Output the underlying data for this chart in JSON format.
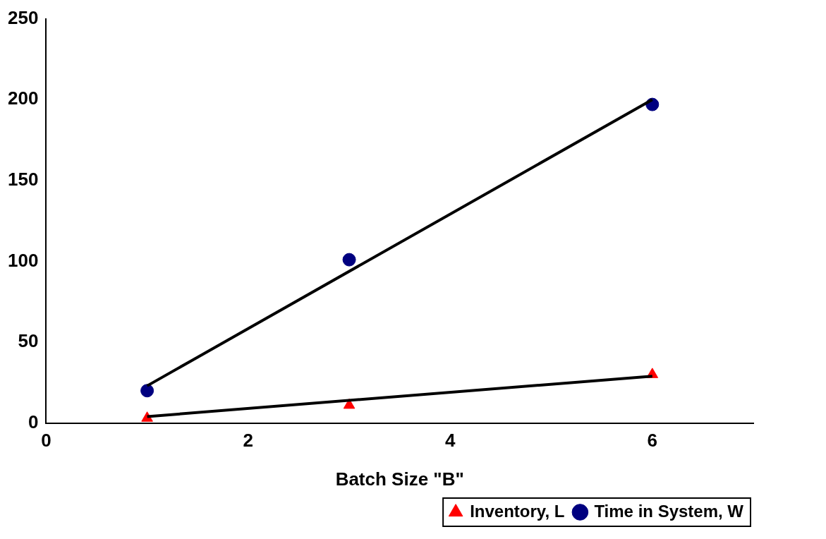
{
  "chart_data": {
    "type": "scatter",
    "xlabel": "Batch Size \"B\"",
    "xlim": [
      0,
      7
    ],
    "xticks": [
      0,
      2,
      4,
      6
    ],
    "ylim": [
      0,
      250
    ],
    "yticks": [
      0,
      50,
      100,
      150,
      200,
      250
    ],
    "grid": false,
    "legend": "bottom right",
    "series": [
      {
        "name": "Inventory, L",
        "color": "#ff0000",
        "marker": "triangle",
        "x": [
          1,
          3,
          6
        ],
        "values": [
          3,
          11,
          30
        ]
      },
      {
        "name": "Time in System, W",
        "color": "#000080",
        "marker": "circle",
        "x": [
          1,
          3,
          6
        ],
        "values": [
          20,
          101,
          197
        ]
      },
      {
        "type": "line",
        "color": "#000000",
        "marker": "none",
        "x": [
          1,
          6
        ],
        "values": [
          4,
          29
        ]
      },
      {
        "type": "line",
        "color": "#000000",
        "marker": "none",
        "x": [
          1,
          6
        ],
        "values": [
          23,
          200
        ]
      }
    ]
  }
}
